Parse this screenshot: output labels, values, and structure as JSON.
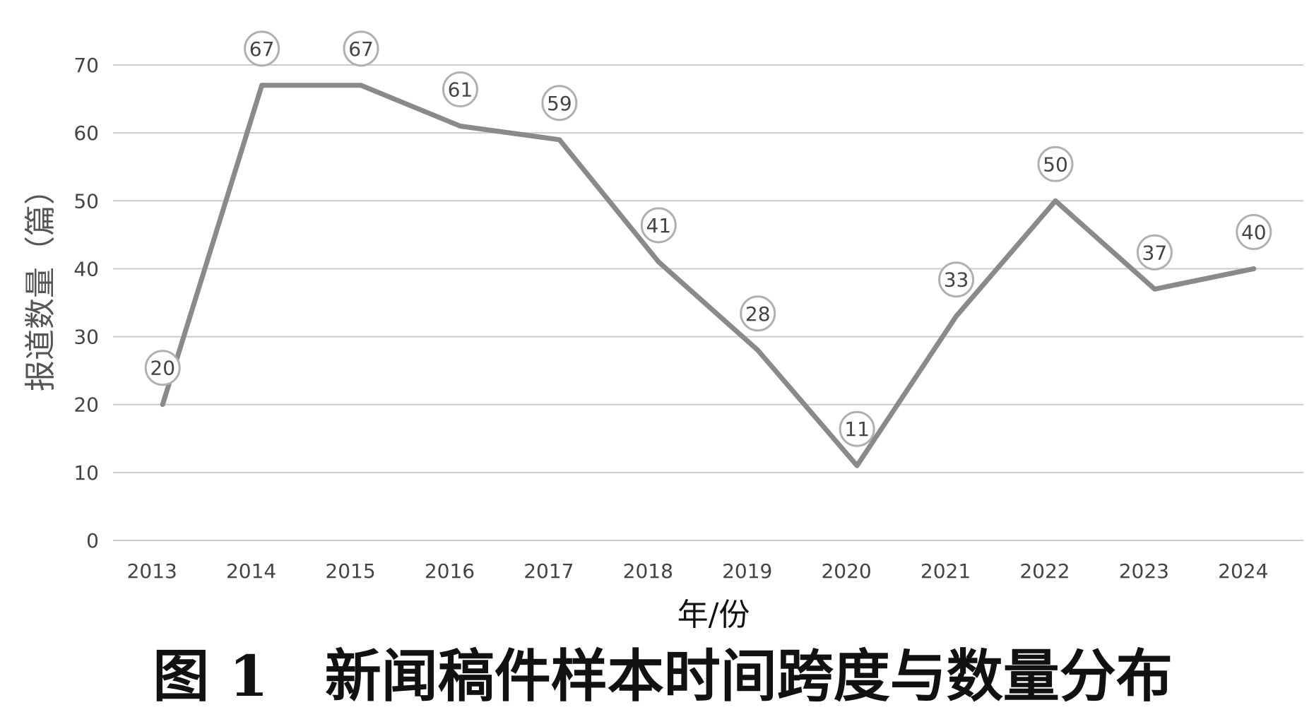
{
  "chart_data": {
    "type": "line",
    "categories": [
      "2013",
      "2014",
      "2015",
      "2016",
      "2017",
      "2018",
      "2019",
      "2020",
      "2021",
      "2022",
      "2023",
      "2024"
    ],
    "series": [
      {
        "values": [
          20,
          67,
          67,
          61,
          59,
          41,
          28,
          11,
          33,
          50,
          37,
          40
        ]
      }
    ],
    "xlabel": "年/份",
    "ylabel": "报道数量（篇）",
    "ylim": [
      0,
      70
    ],
    "yticks": [
      0,
      10,
      20,
      30,
      40,
      50,
      60,
      70
    ],
    "grid": true,
    "data_labels": true,
    "caption": "图 1　新闻稿件样本时间跨度与数量分布",
    "colors": {
      "line": "#8a8a8a",
      "grid": "#cccccc",
      "label_circle": "#b0b0b0"
    }
  }
}
